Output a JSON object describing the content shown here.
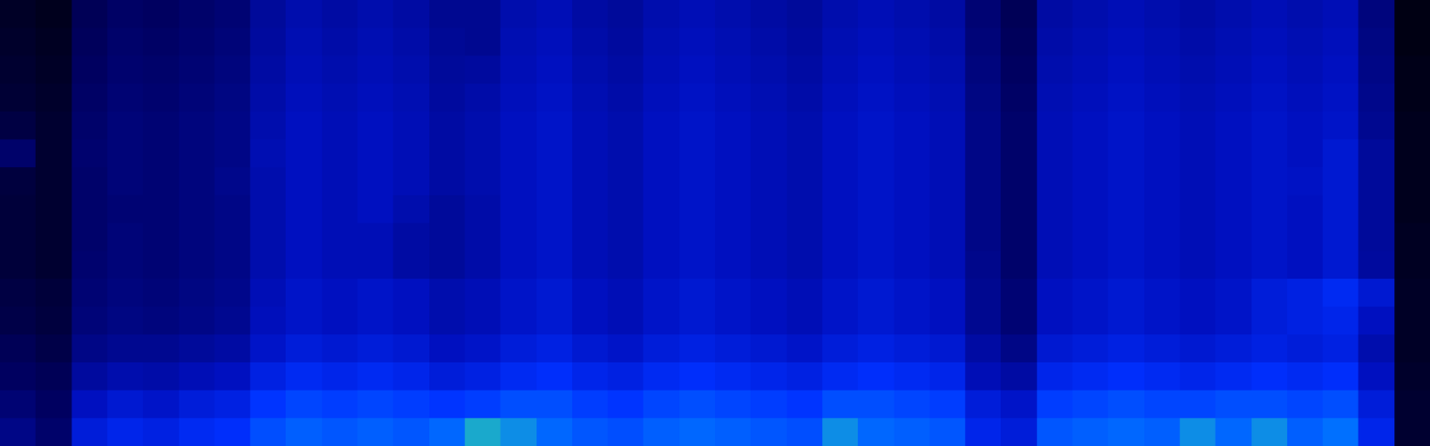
{
  "chart_data": {
    "type": "heatmap",
    "tick_labels": false,
    "zlim": [
      0,
      100
    ],
    "z": [
      [
        8,
        6,
        18,
        21,
        20,
        22,
        24,
        32,
        36,
        34,
        36,
        34,
        30,
        30,
        36,
        38,
        34,
        32,
        36,
        38,
        36,
        34,
        32,
        36,
        38,
        36,
        34,
        24,
        18,
        34,
        36,
        38,
        36,
        34,
        36,
        38,
        36,
        38,
        26,
        4
      ],
      [
        9,
        7,
        19,
        22,
        21,
        23,
        25,
        33,
        37,
        35,
        37,
        35,
        31,
        30,
        37,
        39,
        35,
        33,
        37,
        39,
        37,
        35,
        33,
        37,
        39,
        37,
        35,
        25,
        19,
        35,
        37,
        39,
        37,
        35,
        37,
        39,
        37,
        39,
        27,
        4
      ],
      [
        10,
        8,
        20,
        23,
        22,
        24,
        26,
        34,
        38,
        36,
        38,
        36,
        32,
        33,
        38,
        40,
        36,
        34,
        38,
        40,
        38,
        36,
        34,
        38,
        40,
        38,
        36,
        26,
        20,
        36,
        38,
        40,
        38,
        36,
        38,
        40,
        38,
        40,
        28,
        5
      ],
      [
        11,
        9,
        21,
        24,
        23,
        25,
        27,
        35,
        39,
        37,
        39,
        37,
        33,
        35,
        39,
        41,
        37,
        35,
        39,
        41,
        39,
        37,
        35,
        39,
        41,
        39,
        37,
        27,
        21,
        37,
        39,
        41,
        39,
        37,
        39,
        41,
        39,
        41,
        29,
        5
      ],
      [
        14,
        10,
        22,
        25,
        24,
        26,
        28,
        36,
        40,
        38,
        40,
        38,
        34,
        36,
        40,
        42,
        38,
        36,
        40,
        42,
        40,
        38,
        36,
        40,
        42,
        40,
        38,
        28,
        22,
        38,
        40,
        42,
        40,
        38,
        40,
        42,
        40,
        42,
        30,
        6
      ],
      [
        22,
        10,
        23,
        25,
        24,
        26,
        28,
        37,
        40,
        38,
        40,
        38,
        34,
        36,
        40,
        42,
        38,
        36,
        40,
        42,
        40,
        38,
        36,
        40,
        42,
        40,
        38,
        28,
        22,
        38,
        40,
        42,
        40,
        38,
        40,
        42,
        40,
        44,
        32,
        6
      ],
      [
        13,
        10,
        22,
        25,
        24,
        26,
        29,
        36,
        40,
        38,
        40,
        38,
        34,
        36,
        40,
        42,
        38,
        36,
        40,
        42,
        40,
        38,
        36,
        40,
        42,
        40,
        38,
        28,
        22,
        38,
        40,
        42,
        40,
        38,
        40,
        42,
        41,
        44,
        32,
        6
      ],
      [
        12,
        10,
        22,
        24,
        24,
        26,
        28,
        36,
        40,
        38,
        40,
        36,
        32,
        35,
        40,
        42,
        38,
        36,
        40,
        42,
        40,
        38,
        36,
        40,
        42,
        40,
        38,
        28,
        22,
        38,
        40,
        42,
        40,
        38,
        40,
        42,
        40,
        44,
        32,
        6
      ],
      [
        12,
        10,
        22,
        25,
        24,
        26,
        28,
        36,
        40,
        38,
        38,
        34,
        32,
        35,
        40,
        42,
        38,
        36,
        40,
        42,
        40,
        38,
        36,
        40,
        42,
        40,
        38,
        28,
        22,
        38,
        40,
        42,
        40,
        38,
        40,
        42,
        40,
        44,
        32,
        7
      ],
      [
        12,
        10,
        23,
        25,
        24,
        26,
        28,
        36,
        40,
        38,
        38,
        34,
        32,
        35,
        40,
        42,
        38,
        36,
        40,
        42,
        40,
        38,
        36,
        40,
        42,
        40,
        38,
        29,
        22,
        38,
        40,
        42,
        40,
        38,
        40,
        42,
        40,
        44,
        33,
        7
      ],
      [
        14,
        12,
        24,
        26,
        25,
        27,
        29,
        38,
        42,
        40,
        42,
        40,
        36,
        38,
        42,
        44,
        40,
        38,
        42,
        44,
        42,
        40,
        38,
        42,
        44,
        42,
        40,
        30,
        24,
        40,
        42,
        44,
        42,
        40,
        42,
        46,
        48,
        52,
        44,
        8
      ],
      [
        15,
        13,
        25,
        27,
        26,
        28,
        30,
        39,
        42,
        40,
        42,
        40,
        36,
        38,
        42,
        44,
        40,
        38,
        42,
        44,
        42,
        40,
        38,
        42,
        44,
        42,
        40,
        30,
        24,
        40,
        42,
        44,
        42,
        40,
        42,
        46,
        48,
        50,
        40,
        8
      ],
      [
        18,
        15,
        28,
        30,
        30,
        32,
        34,
        42,
        46,
        44,
        46,
        44,
        40,
        42,
        46,
        48,
        44,
        42,
        46,
        48,
        46,
        44,
        42,
        46,
        48,
        46,
        44,
        34,
        28,
        44,
        46,
        48,
        46,
        44,
        46,
        48,
        46,
        48,
        36,
        8
      ],
      [
        20,
        18,
        33,
        36,
        35,
        38,
        40,
        48,
        52,
        50,
        52,
        50,
        46,
        48,
        52,
        54,
        50,
        48,
        52,
        54,
        52,
        50,
        48,
        52,
        54,
        52,
        50,
        38,
        34,
        50,
        52,
        54,
        52,
        50,
        52,
        54,
        52,
        54,
        40,
        9
      ],
      [
        24,
        20,
        40,
        44,
        42,
        46,
        48,
        56,
        60,
        58,
        60,
        58,
        56,
        58,
        62,
        62,
        58,
        56,
        60,
        62,
        60,
        58,
        56,
        62,
        62,
        60,
        58,
        46,
        42,
        58,
        60,
        62,
        60,
        60,
        62,
        62,
        60,
        62,
        46,
        10
      ],
      [
        28,
        22,
        46,
        50,
        48,
        52,
        54,
        62,
        66,
        64,
        66,
        64,
        68,
        74,
        72,
        68,
        64,
        62,
        66,
        68,
        66,
        64,
        62,
        72,
        68,
        66,
        64,
        50,
        46,
        64,
        66,
        68,
        66,
        72,
        68,
        72,
        66,
        70,
        50,
        10
      ]
    ]
  }
}
